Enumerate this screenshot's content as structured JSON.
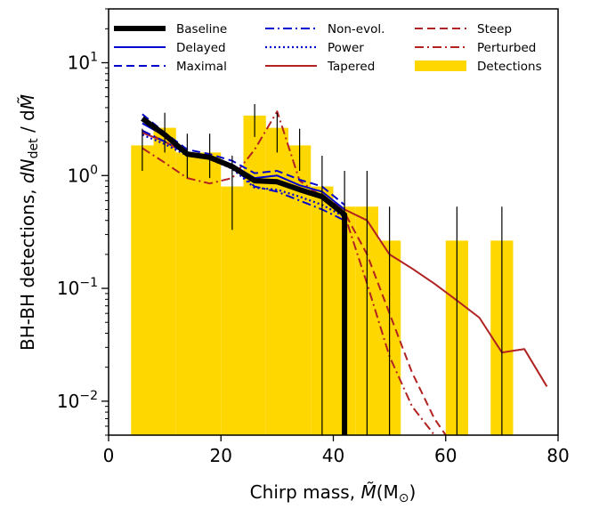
{
  "chart_data": {
    "type": "line",
    "xlabel": "Chirp mass, ",
    "xlabel_symbol": "M̃",
    "xlabel_unit": "(M",
    "xlabel_unit_sub": "⊙",
    "xlabel_close": ")",
    "ylabel": "BH-BH detections, ",
    "ylabel_symbol": "dN",
    "ylabel_sub": "det",
    "ylabel_rest": " / d",
    "ylabel_symbol2": "M̃",
    "xlim": [
      0,
      80
    ],
    "ylim": [
      0.005,
      30
    ],
    "yscale": "log",
    "grid": false,
    "legend_position": "top",
    "x_ticks": [
      {
        "value": 0,
        "label": "0"
      },
      {
        "value": 20,
        "label": "20"
      },
      {
        "value": 40,
        "label": "40"
      },
      {
        "value": 60,
        "label": "60"
      },
      {
        "value": 80,
        "label": "80"
      }
    ],
    "y_ticks": [
      {
        "value": 0.01,
        "base": "10",
        "exp": "−2"
      },
      {
        "value": 0.1,
        "base": "10",
        "exp": "−1"
      },
      {
        "value": 1,
        "base": "10",
        "exp": "0"
      },
      {
        "value": 10,
        "base": "10",
        "exp": "1"
      }
    ],
    "detections": {
      "name": "Detections",
      "color": "#ffd700",
      "bars": [
        {
          "x0": 4,
          "x1": 8,
          "y": 1.85
        },
        {
          "x0": 8,
          "x1": 12,
          "y": 2.65
        },
        {
          "x0": 12,
          "x1": 16,
          "y": 1.6
        },
        {
          "x0": 16,
          "x1": 20,
          "y": 1.6
        },
        {
          "x0": 20,
          "x1": 24,
          "y": 0.8
        },
        {
          "x0": 24,
          "x1": 28,
          "y": 3.4
        },
        {
          "x0": 28,
          "x1": 32,
          "y": 2.65
        },
        {
          "x0": 32,
          "x1": 36,
          "y": 1.85
        },
        {
          "x0": 36,
          "x1": 40,
          "y": 0.8
        },
        {
          "x0": 40,
          "x1": 44,
          "y": 0.53
        },
        {
          "x0": 44,
          "x1": 48,
          "y": 0.53
        },
        {
          "x0": 48,
          "x1": 52,
          "y": 0.265
        },
        {
          "x0": 60,
          "x1": 64,
          "y": 0.265
        },
        {
          "x0": 68,
          "x1": 72,
          "y": 0.265
        }
      ]
    },
    "error_bars": [
      {
        "x": 6,
        "lo": 1.1,
        "hi": 2.6
      },
      {
        "x": 10,
        "lo": 1.6,
        "hi": 3.6
      },
      {
        "x": 14,
        "lo": 0.95,
        "hi": 2.35
      },
      {
        "x": 18,
        "lo": 0.95,
        "hi": 2.35
      },
      {
        "x": 22,
        "lo": 0.33,
        "hi": 1.5
      },
      {
        "x": 26,
        "lo": 2.2,
        "hi": 4.3
      },
      {
        "x": 30,
        "lo": 1.6,
        "hi": 3.6
      },
      {
        "x": 34,
        "lo": 1.1,
        "hi": 2.6
      },
      {
        "x": 38,
        "lo": 0.005,
        "hi": 1.5
      },
      {
        "x": 42,
        "lo": 0.005,
        "hi": 1.1
      },
      {
        "x": 46,
        "lo": 0.005,
        "hi": 1.1
      },
      {
        "x": 50,
        "lo": 0.005,
        "hi": 0.53
      },
      {
        "x": 62,
        "lo": 0.005,
        "hi": 0.53
      },
      {
        "x": 70,
        "lo": 0.005,
        "hi": 0.53
      }
    ],
    "series": [
      {
        "name": "Tapered",
        "color": "#b22222",
        "style": "solid",
        "width": 2,
        "x": [
          6,
          10,
          14,
          18,
          22,
          26,
          30,
          34,
          38,
          42,
          46,
          50,
          54,
          58,
          62,
          66,
          70,
          74,
          78
        ],
        "y": [
          2.4,
          2.0,
          1.55,
          1.45,
          1.2,
          0.92,
          0.9,
          0.78,
          0.65,
          0.5,
          0.4,
          0.2,
          0.15,
          0.11,
          0.078,
          0.055,
          0.027,
          0.029,
          0.0135
        ]
      },
      {
        "name": "Steep",
        "color": "#b22222",
        "style": "dashed",
        "width": 2,
        "x": [
          6,
          10,
          14,
          18,
          22,
          26,
          30,
          34,
          38,
          42,
          46,
          50,
          54,
          58,
          60
        ],
        "y": [
          2.5,
          2.0,
          1.55,
          1.45,
          1.2,
          0.92,
          0.9,
          0.78,
          0.63,
          0.47,
          0.2,
          0.06,
          0.018,
          0.007,
          0.005
        ]
      },
      {
        "name": "Perturbed",
        "color": "#b22222",
        "style": "dashdot",
        "width": 2,
        "x": [
          6,
          10,
          14,
          18,
          22,
          26,
          30,
          34,
          38,
          42,
          46,
          50,
          54,
          58
        ],
        "y": [
          1.75,
          1.3,
          0.95,
          0.85,
          0.95,
          1.7,
          3.7,
          0.9,
          0.65,
          0.45,
          0.11,
          0.025,
          0.009,
          0.004
        ]
      },
      {
        "name": "Non-evol.",
        "color": "#0000cc",
        "style": "dashdot",
        "width": 2,
        "x": [
          6,
          10,
          14,
          18,
          22,
          26,
          30,
          34,
          38,
          42
        ],
        "y": [
          2.5,
          2.0,
          1.55,
          1.45,
          1.2,
          0.8,
          0.72,
          0.6,
          0.5,
          0.4
        ]
      },
      {
        "name": "Delayed",
        "color": "#0000cc",
        "style": "solid",
        "width": 2,
        "x": [
          6,
          10,
          14,
          18,
          22,
          26,
          30,
          34,
          38,
          42
        ],
        "y": [
          2.9,
          2.25,
          1.6,
          1.45,
          1.25,
          0.95,
          1.0,
          0.82,
          0.72,
          0.5
        ]
      },
      {
        "name": "Maximal",
        "color": "#0000cc",
        "style": "dashed",
        "width": 2,
        "x": [
          6,
          10,
          14,
          18,
          22,
          26,
          30,
          34,
          38,
          42
        ],
        "y": [
          3.5,
          2.4,
          1.7,
          1.55,
          1.35,
          1.05,
          1.1,
          0.92,
          0.8,
          0.55
        ]
      },
      {
        "name": "Power",
        "color": "#0000cc",
        "style": "dotted",
        "width": 2.2,
        "x": [
          6,
          10,
          14,
          18,
          22,
          26,
          30,
          34,
          38,
          42
        ],
        "y": [
          2.3,
          1.9,
          1.5,
          1.4,
          1.15,
          0.78,
          0.75,
          0.65,
          0.55,
          0.43
        ]
      },
      {
        "name": "Baseline",
        "color": "#000000",
        "style": "solid",
        "width": 6,
        "x": [
          6,
          10,
          14,
          18,
          22,
          26,
          30,
          34,
          38,
          42,
          42
        ],
        "y": [
          3.2,
          2.3,
          1.55,
          1.45,
          1.2,
          0.9,
          0.88,
          0.75,
          0.65,
          0.45,
          0.005
        ]
      }
    ],
    "legend": [
      {
        "name": "Baseline",
        "color": "#000000",
        "style": "solid",
        "width": 6,
        "col": 0,
        "row": 0
      },
      {
        "name": "Delayed",
        "color": "#0000cc",
        "style": "solid",
        "width": 2,
        "col": 0,
        "row": 1
      },
      {
        "name": "Maximal",
        "color": "#0000cc",
        "style": "dashed",
        "width": 2,
        "col": 0,
        "row": 2
      },
      {
        "name": "Non-evol.",
        "color": "#0000cc",
        "style": "dashdot",
        "width": 2,
        "col": 1,
        "row": 0
      },
      {
        "name": "Power",
        "color": "#0000cc",
        "style": "dotted",
        "width": 2.2,
        "col": 1,
        "row": 1
      },
      {
        "name": "Tapered",
        "color": "#b22222",
        "style": "solid",
        "width": 2,
        "col": 1,
        "row": 2
      },
      {
        "name": "Steep",
        "color": "#b22222",
        "style": "dashed",
        "width": 2,
        "col": 2,
        "row": 0
      },
      {
        "name": "Perturbed",
        "color": "#b22222",
        "style": "dashdot",
        "width": 2,
        "col": 2,
        "row": 1
      },
      {
        "name": "Detections",
        "color": "#ffd700",
        "style": "patch",
        "width": 0,
        "col": 2,
        "row": 2
      }
    ]
  }
}
